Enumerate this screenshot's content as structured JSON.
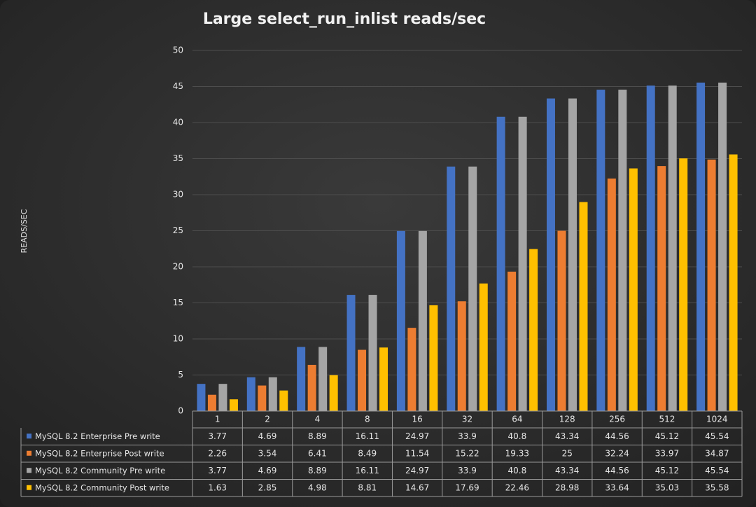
{
  "chart_data": {
    "type": "bar",
    "title": "Large select_run_inlist   reads/sec",
    "y_label": "READS/SEC",
    "categories": [
      "1",
      "2",
      "4",
      "8",
      "16",
      "32",
      "64",
      "128",
      "256",
      "512",
      "1024"
    ],
    "series": [
      {
        "name": "MySQL 8.2 Enterprise Pre write",
        "color": "#4472c4",
        "values": [
          3.77,
          4.69,
          8.89,
          16.11,
          24.97,
          33.9,
          40.8,
          43.34,
          44.56,
          45.12,
          45.54
        ]
      },
      {
        "name": "MySQL 8.2 Enterprise Post write",
        "color": "#ed7d31",
        "values": [
          2.26,
          3.54,
          6.41,
          8.49,
          11.54,
          15.22,
          19.33,
          25,
          32.24,
          33.97,
          34.87
        ]
      },
      {
        "name": "MySQL 8.2 Community Pre write",
        "color": "#a5a5a5",
        "values": [
          3.77,
          4.69,
          8.89,
          16.11,
          24.97,
          33.9,
          40.8,
          43.34,
          44.56,
          45.12,
          45.54
        ]
      },
      {
        "name": "MySQL 8.2 Community Post write",
        "color": "#ffc000",
        "values": [
          1.63,
          2.85,
          4.98,
          8.81,
          14.67,
          17.69,
          22.46,
          28.98,
          33.64,
          35.03,
          35.58
        ]
      }
    ],
    "ylim": [
      0,
      50
    ],
    "yticks": [
      0,
      5,
      10,
      15,
      20,
      25,
      30,
      35,
      40,
      45,
      50
    ],
    "grid": true
  }
}
